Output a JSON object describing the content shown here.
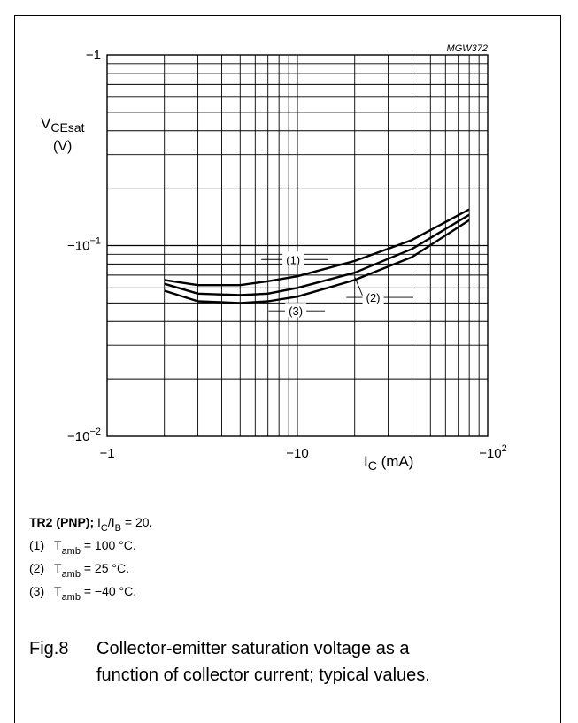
{
  "chart_data": {
    "type": "line",
    "code": "MGW372",
    "ylabel_main": "V",
    "ylabel_sub": "CEsat",
    "ylabel_unit": "(V)",
    "xlabel_main": "I",
    "xlabel_sub": "C",
    "xlabel_unit": " (mA)",
    "xscale": "log",
    "yscale": "log",
    "xlim": [
      -1,
      -100
    ],
    "ylim": [
      -0.01,
      -1
    ],
    "grid": true,
    "x_ticks": [
      {
        "value": -1,
        "base": "−1",
        "exp": ""
      },
      {
        "value": -10,
        "base": "−10",
        "exp": ""
      },
      {
        "value": -100,
        "base": "−10",
        "exp": "2"
      }
    ],
    "y_ticks": [
      {
        "value": -1,
        "base": "−1",
        "exp": ""
      },
      {
        "value": -0.1,
        "base": "−10",
        "exp": "−1"
      },
      {
        "value": -0.01,
        "base": "−10",
        "exp": "−2"
      }
    ],
    "series": [
      {
        "name": "(1)",
        "x": [
          -2,
          -3,
          -5,
          -7,
          -10,
          -20,
          -40,
          -80
        ],
        "y": [
          -0.066,
          -0.062,
          -0.062,
          -0.065,
          -0.069,
          -0.083,
          -0.107,
          -0.155
        ]
      },
      {
        "name": "(2)",
        "x": [
          -2,
          -3,
          -5,
          -7,
          -10,
          -20,
          -40,
          -80
        ],
        "y": [
          -0.063,
          -0.056,
          -0.055,
          -0.056,
          -0.06,
          -0.072,
          -0.096,
          -0.145
        ]
      },
      {
        "name": "(3)",
        "x": [
          -2,
          -3,
          -5,
          -7,
          -10,
          -20,
          -40,
          -80
        ],
        "y": [
          -0.058,
          -0.051,
          -0.05,
          -0.051,
          -0.054,
          -0.066,
          -0.087,
          -0.136
        ]
      }
    ]
  },
  "notes": {
    "title_bold": "TR2 (PNP);",
    "title_i": "I",
    "title_c": "C",
    "title_slash": "/I",
    "title_b": "B",
    "title_rest": " = 20.",
    "items": [
      {
        "num": "(1)",
        "t": "T",
        "sub": "amb",
        "rest": " = 100 °C."
      },
      {
        "num": "(2)",
        "t": "T",
        "sub": "amb",
        "rest": " = 25 °C."
      },
      {
        "num": "(3)",
        "t": "T",
        "sub": "amb",
        "rest": " = −40 °C."
      }
    ]
  },
  "caption": {
    "label": "Fig.8",
    "line1": "Collector-emitter saturation voltage as a",
    "line2": "function of collector current; typical values."
  }
}
